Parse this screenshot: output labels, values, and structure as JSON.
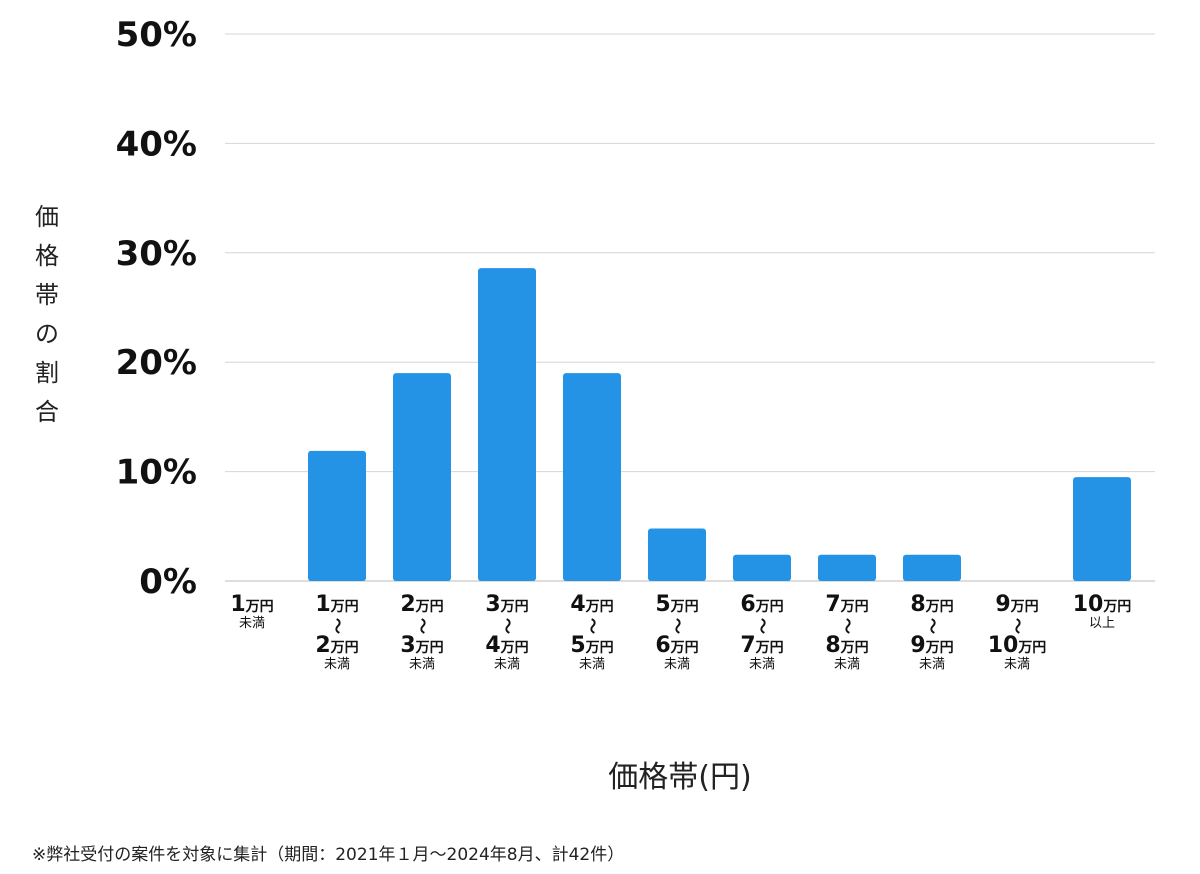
{
  "chart_data": {
    "type": "bar",
    "xlabel": "価格帯(円)",
    "ylabel": "価格帯の割合",
    "ylim": [
      0,
      50
    ],
    "yticks": [
      "0%",
      "10%",
      "20%",
      "30%",
      "40%",
      "50%"
    ],
    "grid": true,
    "bar_color": "#2493e6",
    "categories": [
      {
        "from": "1",
        "from_unit": "万円",
        "to": "",
        "to_unit": "",
        "suffix": "未満"
      },
      {
        "from": "1",
        "from_unit": "万円",
        "to": "2",
        "to_unit": "万円",
        "suffix": "未満"
      },
      {
        "from": "2",
        "from_unit": "万円",
        "to": "3",
        "to_unit": "万円",
        "suffix": "未満"
      },
      {
        "from": "3",
        "from_unit": "万円",
        "to": "4",
        "to_unit": "万円",
        "suffix": "未満"
      },
      {
        "from": "4",
        "from_unit": "万円",
        "to": "5",
        "to_unit": "万円",
        "suffix": "未満"
      },
      {
        "from": "5",
        "from_unit": "万円",
        "to": "6",
        "to_unit": "万円",
        "suffix": "未満"
      },
      {
        "from": "6",
        "from_unit": "万円",
        "to": "7",
        "to_unit": "万円",
        "suffix": "未満"
      },
      {
        "from": "7",
        "from_unit": "万円",
        "to": "8",
        "to_unit": "万円",
        "suffix": "未満"
      },
      {
        "from": "8",
        "from_unit": "万円",
        "to": "9",
        "to_unit": "万円",
        "suffix": "未満"
      },
      {
        "from": "9",
        "from_unit": "万円",
        "to": "10",
        "to_unit": "万円",
        "suffix": "未満"
      },
      {
        "from": "10",
        "from_unit": "万円",
        "to": "",
        "to_unit": "",
        "suffix": "以上"
      }
    ],
    "range_mark": "〜",
    "values": [
      0,
      11.9,
      19.0,
      28.6,
      19.0,
      4.8,
      2.4,
      2.4,
      2.4,
      0,
      9.5
    ]
  },
  "footnote": "※弊社受付の案件を対象に集計（期間：2021年１月〜2024年8月、計42件）"
}
